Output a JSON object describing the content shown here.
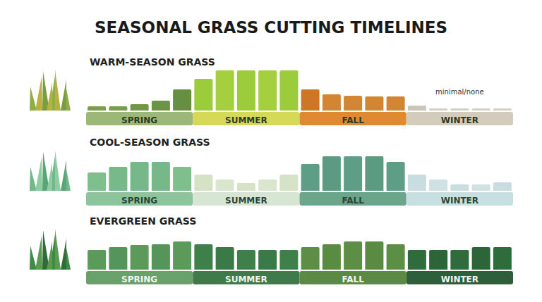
{
  "title": "SEASONAL GRASS CUTTING TIMELINES",
  "chart_data": [
    {
      "type": "bar",
      "title": "WARM-SEASON GRASS",
      "categories": [
        null,
        null,
        "SPRING",
        null,
        null,
        null,
        null,
        "SUMMER",
        null,
        null,
        null,
        null,
        "FALL",
        null,
        null,
        null,
        null,
        "WINTER",
        null,
        null
      ],
      "values": [
        6,
        6,
        9,
        14,
        30,
        45,
        57,
        57,
        57,
        57,
        30,
        23,
        21,
        20,
        20,
        7,
        3,
        3,
        3,
        3
      ],
      "colors": [
        "#7a9d4f",
        "#7a9d4f",
        "#6e9848",
        "#6a9446",
        "#678f43",
        "#9bcc3c",
        "#a4d040",
        "#9ccb3c",
        "#a4d040",
        "#9ccb3c",
        "#cf7526",
        "#d28532",
        "#d28532",
        "#d28532",
        "#d28532",
        "#c9c5b8",
        "#d3cfc3",
        "#d3cfc3",
        "#d3cfc3",
        "#d3cfc3"
      ],
      "ylim": [
        0,
        60
      ],
      "tick_labels": false,
      "grid": false,
      "annotations": [
        "minimal/none"
      ]
    },
    {
      "type": "bar",
      "title": "COOL-SEASON GRASS",
      "categories": [
        null,
        null,
        "SPRING",
        null,
        null,
        null,
        null,
        "SUMMER",
        null,
        null,
        null,
        null,
        "FALL",
        null,
        null,
        null,
        null,
        "WINTER",
        null,
        null
      ],
      "values": [
        26,
        34,
        41,
        41,
        34,
        23,
        16,
        11,
        16,
        23,
        38,
        49,
        49,
        49,
        41,
        23,
        16,
        9,
        9,
        12
      ],
      "colors": [
        "#7fbf8e",
        "#78b98a",
        "#76b88a",
        "#76b88a",
        "#7fbf8e",
        "#d6e2c5",
        "#d9e5cc",
        "#d6e2c5",
        "#d9e5cc",
        "#d6e2c5",
        "#5f9e86",
        "#5c9a82",
        "#5f9e86",
        "#5c9a82",
        "#5f9e86",
        "#c9dde0",
        "#cfe1e3",
        "#c9dde0",
        "#cfe1e3",
        "#c9dde0"
      ],
      "ylim": [
        0,
        60
      ],
      "tick_labels": false,
      "grid": false
    },
    {
      "type": "bar",
      "title": "EVERGREEN GRASS",
      "categories": [
        null,
        null,
        "SPRING",
        null,
        null,
        null,
        null,
        "SUMMER",
        null,
        null,
        null,
        null,
        "FALL",
        null,
        null,
        null,
        null,
        "WINTER",
        null,
        null
      ],
      "values": [
        28,
        32,
        35,
        36,
        40,
        36,
        32,
        28,
        28,
        28,
        32,
        36,
        40,
        40,
        36,
        28,
        28,
        28,
        32,
        32
      ],
      "colors": [
        "#5b9a5b",
        "#56955a",
        "#5b9a5b",
        "#56955a",
        "#5b9a5b",
        "#3f7f4a",
        "#3a7a46",
        "#3f7f4a",
        "#3a7a46",
        "#3f7f4a",
        "#5c8f45",
        "#598c42",
        "#5c8f45",
        "#598c42",
        "#5c8f45",
        "#2f6b3b",
        "#2c6638",
        "#2f6b3b",
        "#2c6638",
        "#2f6b3b"
      ],
      "ylim": [
        0,
        60
      ],
      "tick_labels": false,
      "grid": false
    }
  ]
}
